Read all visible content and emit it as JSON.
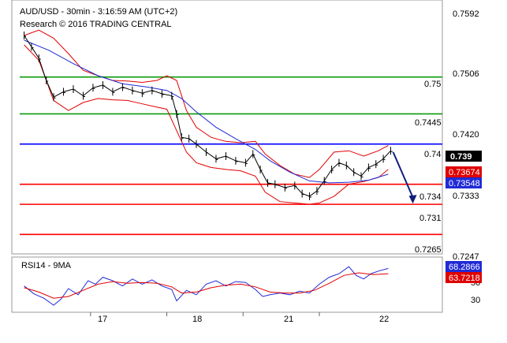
{
  "chart_data": {
    "type": "line",
    "title": "AUD/USD - 30min - 3:16:59 AM (UTC+2)",
    "subtitle": "Research © 2016 TRADING CENTRAL",
    "colors": {
      "price": "#000000",
      "bands": "#e00000",
      "ma": "#1f2bd6",
      "green": "#0a9a0a",
      "red": "#ff0000",
      "blue": "#0000ff"
    },
    "price_panel": {
      "ylim": [
        0.7236,
        0.7615
      ],
      "yticks": [
        {
          "value": 0.7592,
          "label": "0.7592"
        },
        {
          "value": 0.7506,
          "label": "0.7506"
        },
        {
          "value": 0.742,
          "label": "0.7420"
        },
        {
          "value": 0.7333,
          "label": "0.7333"
        },
        {
          "value": 0.7247,
          "label": "0.7247"
        }
      ],
      "levels": [
        {
          "value": 0.75,
          "label": "0.75",
          "color": "#0a9a0a"
        },
        {
          "value": 0.7445,
          "label": "0.7445",
          "color": "#0a9a0a"
        },
        {
          "value": 0.74,
          "label": "0.74",
          "color": "#0000ff"
        },
        {
          "value": 0.734,
          "label": "0.734",
          "color": "#ff0000"
        },
        {
          "value": 0.731,
          "label": "0.731",
          "color": "#ff0000"
        },
        {
          "value": 0.7265,
          "label": "0.7265",
          "color": "#ff0000"
        }
      ],
      "badges": [
        {
          "value": 0.739,
          "label": "0.739",
          "bg": "#000000",
          "fg": "#ffffff"
        },
        {
          "value": 0.73674,
          "label": "0.73674",
          "bg": "#e00000",
          "fg": "#ffffff"
        },
        {
          "value": 0.73548,
          "label": "0.73548",
          "bg": "#1f2bd6",
          "fg": "#ffffff"
        }
      ],
      "price": [
        {
          "t": 0,
          "v": 0.7562
        },
        {
          "t": 3,
          "v": 0.7545
        },
        {
          "t": 6,
          "v": 0.7528
        },
        {
          "t": 9,
          "v": 0.7495
        },
        {
          "t": 12,
          "v": 0.747
        },
        {
          "t": 16,
          "v": 0.7478
        },
        {
          "t": 20,
          "v": 0.7482
        },
        {
          "t": 24,
          "v": 0.7472
        },
        {
          "t": 28,
          "v": 0.7484
        },
        {
          "t": 32,
          "v": 0.7488
        },
        {
          "t": 36,
          "v": 0.7478
        },
        {
          "t": 40,
          "v": 0.7485
        },
        {
          "t": 44,
          "v": 0.748
        },
        {
          "t": 48,
          "v": 0.7476
        },
        {
          "t": 52,
          "v": 0.748
        },
        {
          "t": 56,
          "v": 0.7475
        },
        {
          "t": 60,
          "v": 0.7472
        },
        {
          "t": 62,
          "v": 0.7445
        },
        {
          "t": 64,
          "v": 0.741
        },
        {
          "t": 67,
          "v": 0.7408
        },
        {
          "t": 70,
          "v": 0.74
        },
        {
          "t": 74,
          "v": 0.7388
        },
        {
          "t": 78,
          "v": 0.7378
        },
        {
          "t": 82,
          "v": 0.7382
        },
        {
          "t": 86,
          "v": 0.7375
        },
        {
          "t": 90,
          "v": 0.7372
        },
        {
          "t": 93,
          "v": 0.7385
        },
        {
          "t": 96,
          "v": 0.7362
        },
        {
          "t": 99,
          "v": 0.7342
        },
        {
          "t": 102,
          "v": 0.734
        },
        {
          "t": 106,
          "v": 0.7335
        },
        {
          "t": 110,
          "v": 0.7338
        },
        {
          "t": 113,
          "v": 0.7326
        },
        {
          "t": 116,
          "v": 0.7322
        },
        {
          "t": 119,
          "v": 0.733
        },
        {
          "t": 122,
          "v": 0.7345
        },
        {
          "t": 125,
          "v": 0.7362
        },
        {
          "t": 128,
          "v": 0.7372
        },
        {
          "t": 131,
          "v": 0.7368
        },
        {
          "t": 134,
          "v": 0.7358
        },
        {
          "t": 137,
          "v": 0.7352
        },
        {
          "t": 140,
          "v": 0.7365
        },
        {
          "t": 143,
          "v": 0.737
        },
        {
          "t": 146,
          "v": 0.7378
        },
        {
          "t": 149,
          "v": 0.739
        }
      ],
      "upper_band": [
        {
          "t": 0,
          "v": 0.7562
        },
        {
          "t": 6,
          "v": 0.757
        },
        {
          "t": 12,
          "v": 0.7558
        },
        {
          "t": 18,
          "v": 0.7535
        },
        {
          "t": 24,
          "v": 0.751
        },
        {
          "t": 30,
          "v": 0.7502
        },
        {
          "t": 36,
          "v": 0.7495
        },
        {
          "t": 42,
          "v": 0.7494
        },
        {
          "t": 48,
          "v": 0.7492
        },
        {
          "t": 54,
          "v": 0.7495
        },
        {
          "t": 58,
          "v": 0.7502
        },
        {
          "t": 62,
          "v": 0.7495
        },
        {
          "t": 66,
          "v": 0.745
        },
        {
          "t": 70,
          "v": 0.7425
        },
        {
          "t": 76,
          "v": 0.741
        },
        {
          "t": 82,
          "v": 0.7404
        },
        {
          "t": 88,
          "v": 0.7402
        },
        {
          "t": 94,
          "v": 0.7404
        },
        {
          "t": 98,
          "v": 0.7385
        },
        {
          "t": 104,
          "v": 0.7368
        },
        {
          "t": 110,
          "v": 0.7355
        },
        {
          "t": 116,
          "v": 0.735
        },
        {
          "t": 120,
          "v": 0.7362
        },
        {
          "t": 126,
          "v": 0.7388
        },
        {
          "t": 132,
          "v": 0.739
        },
        {
          "t": 138,
          "v": 0.7382
        },
        {
          "t": 144,
          "v": 0.739
        },
        {
          "t": 148,
          "v": 0.7398
        }
      ],
      "lower_band": [
        {
          "t": 0,
          "v": 0.7548
        },
        {
          "t": 6,
          "v": 0.7525
        },
        {
          "t": 12,
          "v": 0.7465
        },
        {
          "t": 18,
          "v": 0.745
        },
        {
          "t": 24,
          "v": 0.7462
        },
        {
          "t": 30,
          "v": 0.7468
        },
        {
          "t": 36,
          "v": 0.7466
        },
        {
          "t": 42,
          "v": 0.7465
        },
        {
          "t": 48,
          "v": 0.746
        },
        {
          "t": 54,
          "v": 0.7455
        },
        {
          "t": 58,
          "v": 0.7452
        },
        {
          "t": 62,
          "v": 0.742
        },
        {
          "t": 66,
          "v": 0.7388
        },
        {
          "t": 70,
          "v": 0.7372
        },
        {
          "t": 76,
          "v": 0.7365
        },
        {
          "t": 82,
          "v": 0.7362
        },
        {
          "t": 88,
          "v": 0.736
        },
        {
          "t": 94,
          "v": 0.7352
        },
        {
          "t": 98,
          "v": 0.7328
        },
        {
          "t": 104,
          "v": 0.7314
        },
        {
          "t": 110,
          "v": 0.7312
        },
        {
          "t": 116,
          "v": 0.731
        },
        {
          "t": 120,
          "v": 0.7312
        },
        {
          "t": 126,
          "v": 0.7322
        },
        {
          "t": 132,
          "v": 0.734
        },
        {
          "t": 138,
          "v": 0.7344
        },
        {
          "t": 144,
          "v": 0.735
        },
        {
          "t": 148,
          "v": 0.7362
        }
      ],
      "ma": [
        {
          "t": 0,
          "v": 0.7555
        },
        {
          "t": 10,
          "v": 0.754
        },
        {
          "t": 20,
          "v": 0.752
        },
        {
          "t": 30,
          "v": 0.7502
        },
        {
          "t": 40,
          "v": 0.749
        },
        {
          "t": 50,
          "v": 0.7485
        },
        {
          "t": 58,
          "v": 0.748
        },
        {
          "t": 64,
          "v": 0.7468
        },
        {
          "t": 70,
          "v": 0.7448
        },
        {
          "t": 78,
          "v": 0.7425
        },
        {
          "t": 86,
          "v": 0.7408
        },
        {
          "t": 94,
          "v": 0.7392
        },
        {
          "t": 100,
          "v": 0.7375
        },
        {
          "t": 108,
          "v": 0.7358
        },
        {
          "t": 116,
          "v": 0.7345
        },
        {
          "t": 124,
          "v": 0.7342
        },
        {
          "t": 132,
          "v": 0.7343
        },
        {
          "t": 140,
          "v": 0.7346
        },
        {
          "t": 148,
          "v": 0.7355
        }
      ],
      "forecast": [
        {
          "t": 150,
          "v": 0.7388
        },
        {
          "t": 158,
          "v": 0.7311
        }
      ]
    },
    "rsi_panel": {
      "label": "RSI14 - 9MA",
      "ylim": [
        20,
        83
      ],
      "yticks": [
        {
          "value": 50,
          "label": "50"
        },
        {
          "value": 30,
          "label": "30"
        }
      ],
      "badges": [
        {
          "value": 68.2866,
          "label": "68.2866",
          "bg": "#1f2bd6",
          "fg": "#ffffff"
        },
        {
          "value": 63.7218,
          "label": "63.7218",
          "bg": "#e00000",
          "fg": "#ffffff"
        }
      ],
      "rsi": [
        {
          "t": 0,
          "v": 50
        },
        {
          "t": 4,
          "v": 41
        },
        {
          "t": 8,
          "v": 36
        },
        {
          "t": 12,
          "v": 28
        },
        {
          "t": 15,
          "v": 35
        },
        {
          "t": 18,
          "v": 47
        },
        {
          "t": 22,
          "v": 40
        },
        {
          "t": 26,
          "v": 56
        },
        {
          "t": 29,
          "v": 52
        },
        {
          "t": 32,
          "v": 60
        },
        {
          "t": 36,
          "v": 56
        },
        {
          "t": 40,
          "v": 50
        },
        {
          "t": 44,
          "v": 58
        },
        {
          "t": 48,
          "v": 52
        },
        {
          "t": 52,
          "v": 57
        },
        {
          "t": 56,
          "v": 50
        },
        {
          "t": 60,
          "v": 46
        },
        {
          "t": 62,
          "v": 33
        },
        {
          "t": 66,
          "v": 45
        },
        {
          "t": 70,
          "v": 40
        },
        {
          "t": 74,
          "v": 52
        },
        {
          "t": 78,
          "v": 56
        },
        {
          "t": 82,
          "v": 50
        },
        {
          "t": 86,
          "v": 55
        },
        {
          "t": 90,
          "v": 54
        },
        {
          "t": 94,
          "v": 46
        },
        {
          "t": 97,
          "v": 38
        },
        {
          "t": 100,
          "v": 40
        },
        {
          "t": 104,
          "v": 42
        },
        {
          "t": 108,
          "v": 40
        },
        {
          "t": 112,
          "v": 44
        },
        {
          "t": 116,
          "v": 42
        },
        {
          "t": 120,
          "v": 52
        },
        {
          "t": 124,
          "v": 60
        },
        {
          "t": 128,
          "v": 64
        },
        {
          "t": 132,
          "v": 72
        },
        {
          "t": 135,
          "v": 62
        },
        {
          "t": 138,
          "v": 58
        },
        {
          "t": 141,
          "v": 64
        },
        {
          "t": 144,
          "v": 67
        },
        {
          "t": 148,
          "v": 70
        }
      ],
      "rsi_ma": [
        {
          "t": 0,
          "v": 48
        },
        {
          "t": 6,
          "v": 43
        },
        {
          "t": 12,
          "v": 36
        },
        {
          "t": 18,
          "v": 38
        },
        {
          "t": 24,
          "v": 45
        },
        {
          "t": 30,
          "v": 52
        },
        {
          "t": 36,
          "v": 55
        },
        {
          "t": 42,
          "v": 53
        },
        {
          "t": 48,
          "v": 54
        },
        {
          "t": 54,
          "v": 53
        },
        {
          "t": 60,
          "v": 49
        },
        {
          "t": 64,
          "v": 42
        },
        {
          "t": 70,
          "v": 43
        },
        {
          "t": 76,
          "v": 48
        },
        {
          "t": 82,
          "v": 51
        },
        {
          "t": 88,
          "v": 52
        },
        {
          "t": 94,
          "v": 49
        },
        {
          "t": 100,
          "v": 43
        },
        {
          "t": 106,
          "v": 42
        },
        {
          "t": 112,
          "v": 42
        },
        {
          "t": 118,
          "v": 45
        },
        {
          "t": 124,
          "v": 53
        },
        {
          "t": 130,
          "v": 62
        },
        {
          "t": 136,
          "v": 65
        },
        {
          "t": 142,
          "v": 63
        },
        {
          "t": 148,
          "v": 64
        }
      ]
    },
    "x_axis": {
      "ticks": [
        {
          "t": 27,
          "label": "17"
        },
        {
          "t": 58,
          "label": "18"
        },
        {
          "t": 89,
          "label": "21"
        },
        {
          "t": 120,
          "label": "22"
        }
      ]
    },
    "xlim": [
      -5,
      170
    ]
  }
}
